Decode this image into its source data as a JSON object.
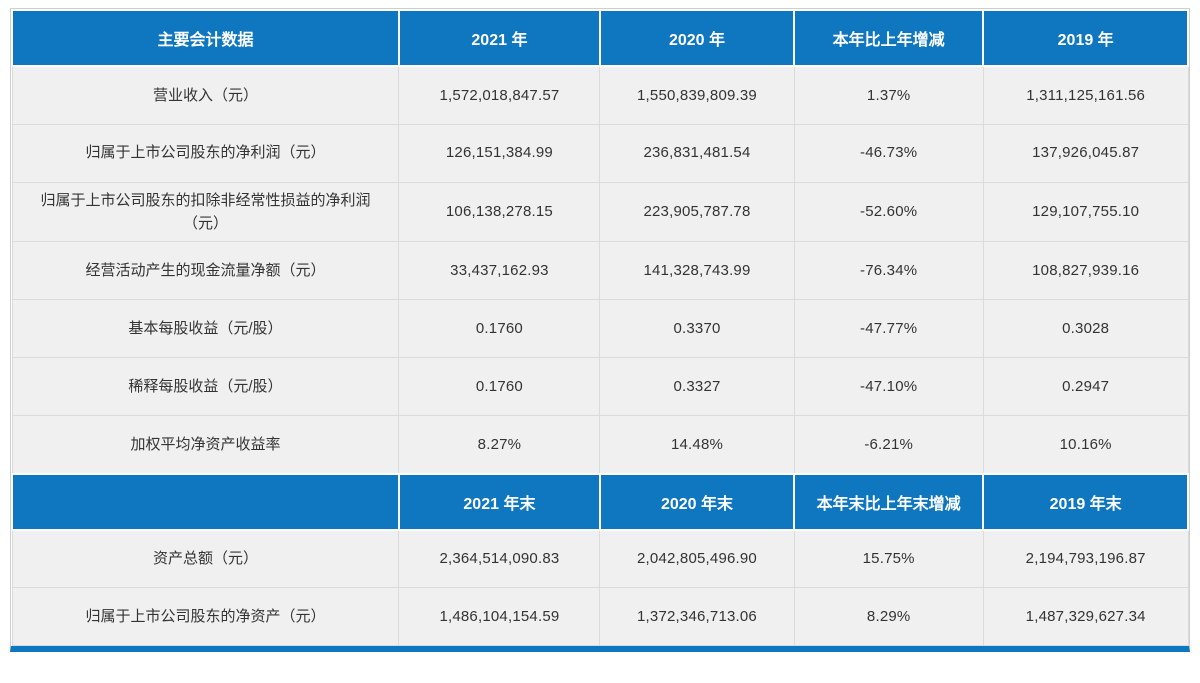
{
  "theme": {
    "accent_color": "#0F76C0",
    "row_bg_color": "#F0F0F0",
    "grid_color": "#DBDBDB",
    "header_text_color": "#FFFFFF",
    "body_text_color": "#333333"
  },
  "table": {
    "header1": {
      "label": "主要会计数据",
      "cols": [
        "2021 年",
        "2020 年",
        "本年比上年增减",
        "2019 年"
      ]
    },
    "annual_rows": [
      {
        "label": "营业收入（元）",
        "values": [
          "1,572,018,847.57",
          "1,550,839,809.39",
          "1.37%",
          "1,311,125,161.56"
        ]
      },
      {
        "label": "归属于上市公司股东的净利润（元）",
        "values": [
          "126,151,384.99",
          "236,831,481.54",
          "-46.73%",
          "137,926,045.87"
        ]
      },
      {
        "label": "归属于上市公司股东的扣除非经常性损益的净利润（元）",
        "values": [
          "106,138,278.15",
          "223,905,787.78",
          "-52.60%",
          "129,107,755.10"
        ]
      },
      {
        "label": "经营活动产生的现金流量净额（元）",
        "values": [
          "33,437,162.93",
          "141,328,743.99",
          "-76.34%",
          "108,827,939.16"
        ]
      },
      {
        "label": "基本每股收益（元/股）",
        "values": [
          "0.1760",
          "0.3370",
          "-47.77%",
          "0.3028"
        ]
      },
      {
        "label": "稀释每股收益（元/股）",
        "values": [
          "0.1760",
          "0.3327",
          "-47.10%",
          "0.2947"
        ]
      },
      {
        "label": "加权平均净资产收益率",
        "values": [
          "8.27%",
          "14.48%",
          "-6.21%",
          "10.16%"
        ]
      }
    ],
    "header2": {
      "label": "",
      "cols": [
        "2021 年末",
        "2020 年末",
        "本年末比上年末增减",
        "2019 年末"
      ]
    },
    "balance_rows": [
      {
        "label": "资产总额（元）",
        "values": [
          "2,364,514,090.83",
          "2,042,805,496.90",
          "15.75%",
          "2,194,793,196.87"
        ]
      },
      {
        "label": "归属于上市公司股东的净资产（元）",
        "values": [
          "1,486,104,154.59",
          "1,372,346,713.06",
          "8.29%",
          "1,487,329,627.34"
        ]
      }
    ]
  }
}
